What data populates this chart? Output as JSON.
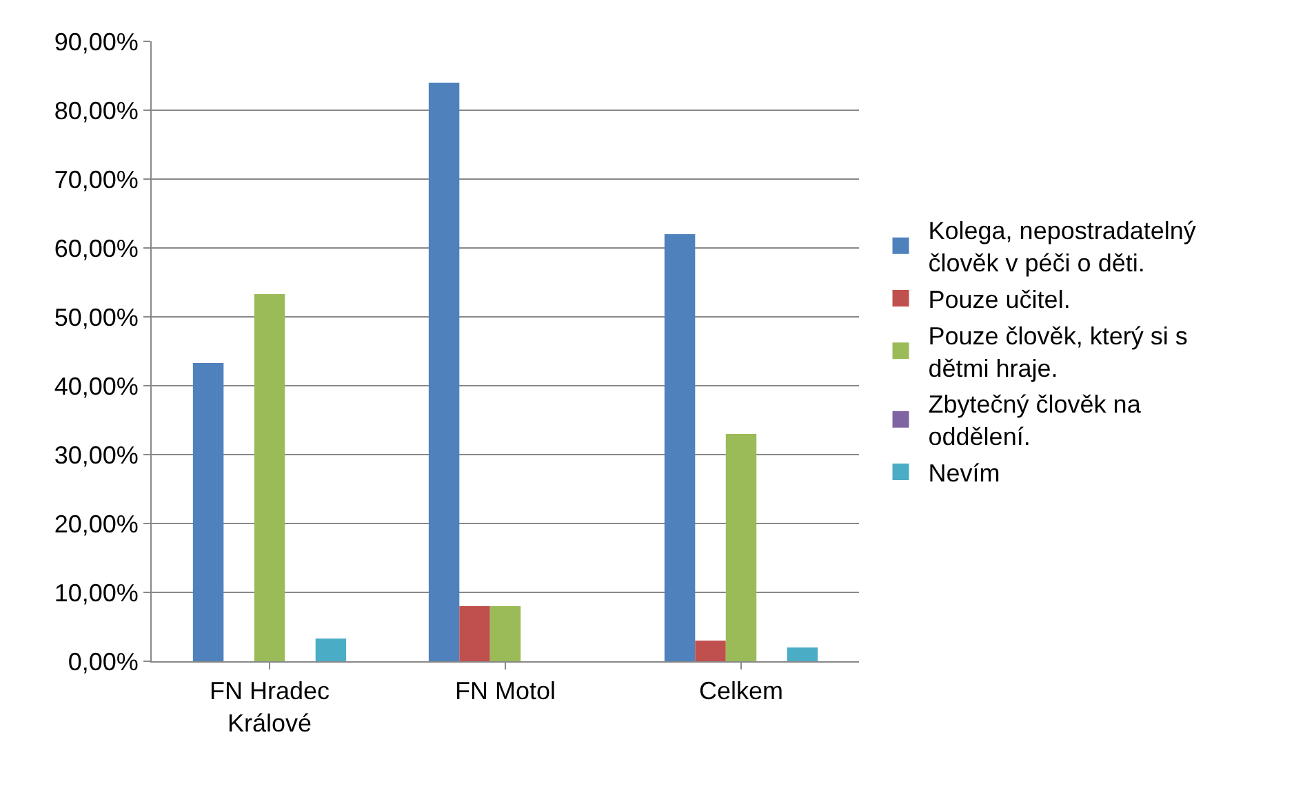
{
  "chart_data": {
    "type": "bar",
    "categories": [
      "FN Hradec Králové",
      "FN Motol",
      "Celkem"
    ],
    "series": [
      {
        "name": "Kolega, nepostradatelný člověk v péči o děti.",
        "color": "#4f81bd",
        "values": [
          43.3,
          84,
          62
        ]
      },
      {
        "name": "Pouze učitel.",
        "color": "#c0504d",
        "values": [
          0,
          8,
          3
        ]
      },
      {
        "name": "Pouze člověk, který si s dětmi hraje.",
        "color": "#9bbb59",
        "values": [
          53.3,
          8,
          33
        ]
      },
      {
        "name": "Zbytečný člověk na oddělení.",
        "color": "#8064a2",
        "values": [
          0,
          0,
          0
        ]
      },
      {
        "name": "Nevím",
        "color": "#4bacc6",
        "values": [
          3.3,
          0,
          2
        ]
      }
    ],
    "ylim": [
      0,
      90
    ],
    "yticks": [
      {
        "value": 0,
        "label": "0,00%"
      },
      {
        "value": 10,
        "label": "10,00%"
      },
      {
        "value": 20,
        "label": "20,00%"
      },
      {
        "value": 30,
        "label": "30,00%"
      },
      {
        "value": 40,
        "label": "40,00%"
      },
      {
        "value": 50,
        "label": "50,00%"
      },
      {
        "value": 60,
        "label": "60,00%"
      },
      {
        "value": 70,
        "label": "70,00%"
      },
      {
        "value": 80,
        "label": "80,00%"
      },
      {
        "value": 90,
        "label": "90,00%"
      }
    ],
    "grid": "y",
    "legend": "right"
  }
}
